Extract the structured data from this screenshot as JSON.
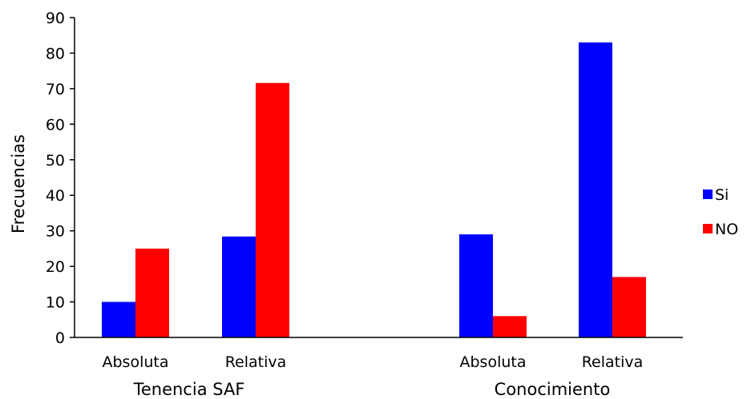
{
  "chart_data": {
    "type": "bar",
    "ylabel": "Frecuencias",
    "ylim": [
      0,
      90
    ],
    "yticks": [
      0,
      10,
      20,
      30,
      40,
      50,
      60,
      70,
      80,
      90
    ],
    "grid": false,
    "legend_position": "right",
    "groups": [
      {
        "label": "Tenencia SAF",
        "categories": [
          "Absoluta",
          "Relativa"
        ]
      },
      {
        "label": "Conocimiento",
        "categories": [
          "Absoluta",
          "Relativa"
        ]
      }
    ],
    "series": [
      {
        "name": "Si",
        "color": "#0000ff",
        "values": [
          10,
          28.4,
          29,
          83
        ]
      },
      {
        "name": "NO",
        "color": "#ff0000",
        "values": [
          25,
          71.6,
          6,
          17
        ]
      }
    ]
  }
}
